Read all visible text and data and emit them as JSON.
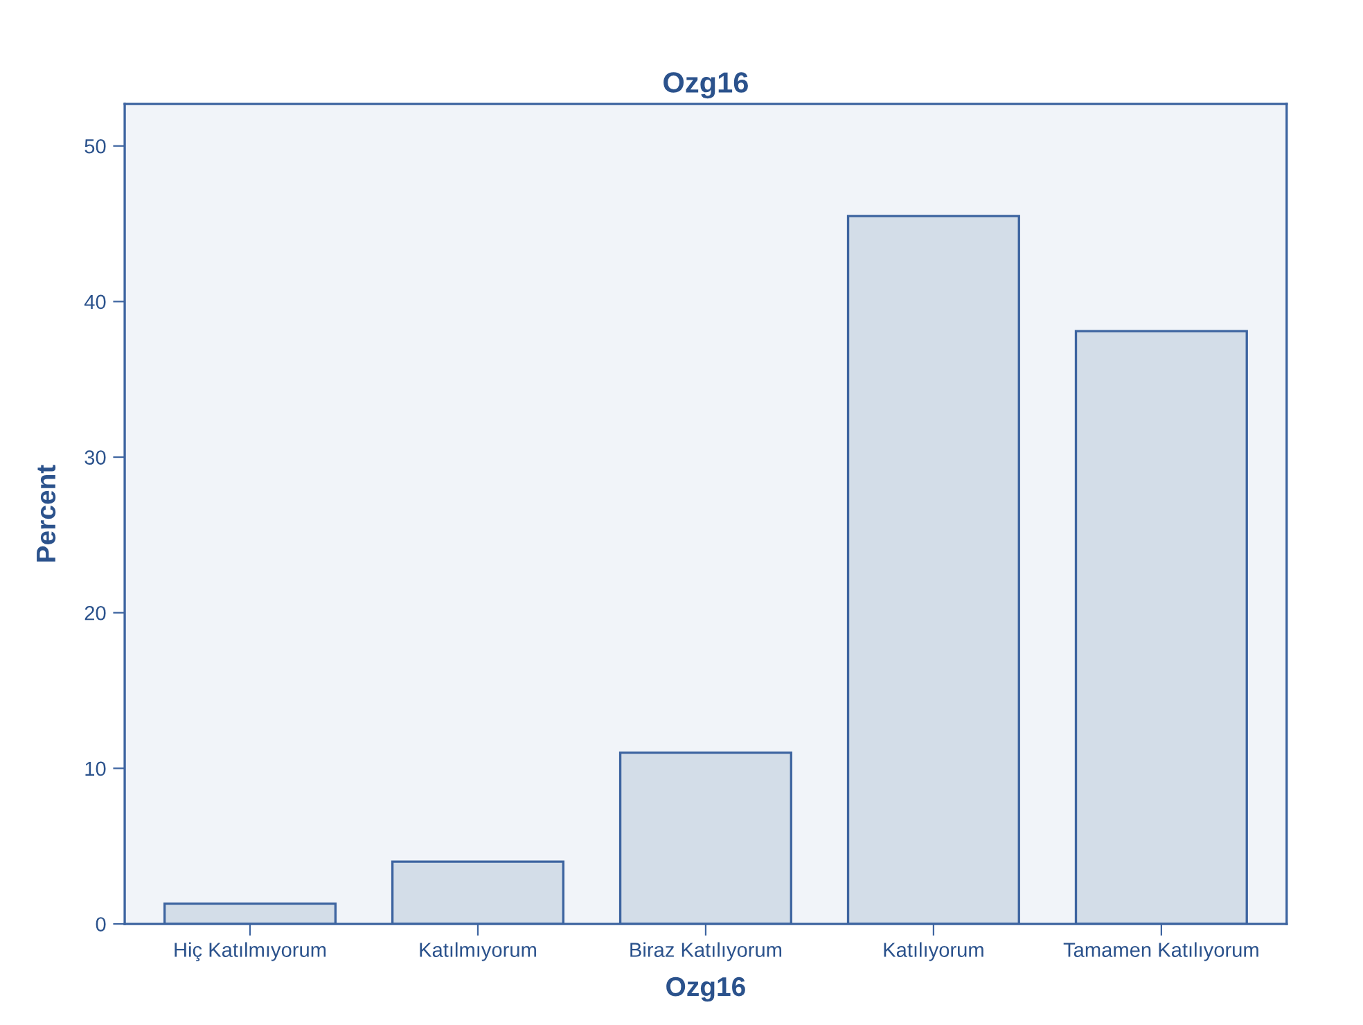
{
  "chart_data": {
    "type": "bar",
    "title": "Ozg16",
    "xlabel": "Ozg16",
    "ylabel": "Percent",
    "categories": [
      "Hiç Katılmıyorum",
      "Katılmıyorum",
      "Biraz Katılıyorum",
      "Katılıyorum",
      "Tamamen Katılıyorum"
    ],
    "values": [
      1.3,
      4.0,
      11.0,
      45.5,
      38.1
    ],
    "color": "#d3dde8",
    "ylim": [
      0,
      52.7
    ],
    "yticks": [
      0,
      10,
      20,
      30,
      40,
      50
    ],
    "grid": false,
    "legend": false
  }
}
